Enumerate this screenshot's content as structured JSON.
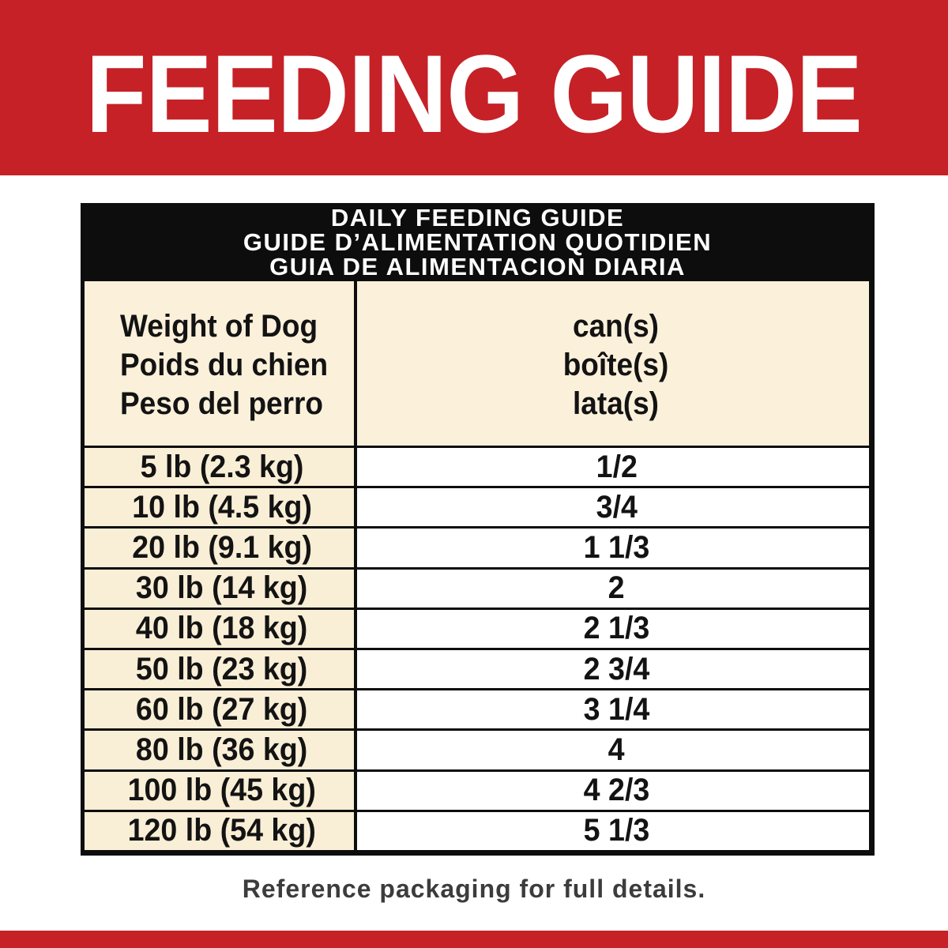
{
  "banner": {
    "title": "FEEDING GUIDE"
  },
  "table": {
    "band_lines": [
      "DAILY FEEDING GUIDE",
      "GUIDE D’ALIMENTATION QUOTIDIEN",
      "GUIA DE ALIMENTACION DIARIA"
    ],
    "header": {
      "weight_lines": [
        "Weight of Dog",
        "Poids du chien",
        "Peso del perro"
      ],
      "cans_lines": [
        "can(s)",
        "boîte(s)",
        "lata(s)"
      ]
    },
    "rows": [
      {
        "weight": "5 lb (2.3 kg)",
        "cans": "1/2"
      },
      {
        "weight": "10 lb (4.5 kg)",
        "cans": "3/4"
      },
      {
        "weight": "20 lb (9.1 kg)",
        "cans": "1 1/3"
      },
      {
        "weight": "30 lb (14 kg)",
        "cans": "2"
      },
      {
        "weight": "40 lb (18 kg)",
        "cans": "2 1/3"
      },
      {
        "weight": "50 lb (23 kg)",
        "cans": "2 3/4"
      },
      {
        "weight": "60 lb (27 kg)",
        "cans": "3 1/4"
      },
      {
        "weight": "80 lb (36 kg)",
        "cans": "4"
      },
      {
        "weight": "100 lb (45 kg)",
        "cans": "4 2/3"
      },
      {
        "weight": "120 lb (54 kg)",
        "cans": "5 1/3"
      }
    ]
  },
  "footer": {
    "note": "Reference packaging for full details."
  },
  "colors": {
    "banner_red": "#c52127",
    "band_black": "#0d0d0d",
    "cream": "#f9eed6",
    "header_cream": "#fbf0da",
    "text_dark": "#131313",
    "footer_gray": "#3c3c3c"
  }
}
